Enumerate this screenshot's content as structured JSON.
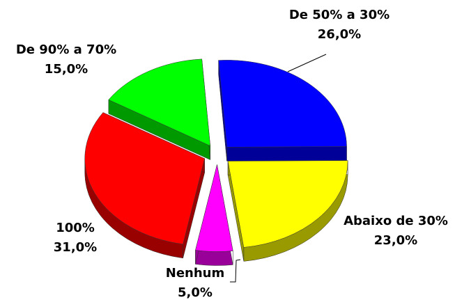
{
  "chart_data": {
    "type": "pie",
    "categories": [
      "De 50% a 30%",
      "Abaixo de 30%",
      "Nenhum",
      "100%",
      "De 90% a 70%"
    ],
    "values": [
      26,
      23,
      5,
      31,
      15
    ],
    "value_labels": [
      "26,0%",
      "23,0%",
      "5,0%",
      "31,0%",
      "15,0%"
    ],
    "colors": [
      "#0000ff",
      "#ffff00",
      "#ff00ff",
      "#ff0000",
      "#00ff00"
    ]
  }
}
